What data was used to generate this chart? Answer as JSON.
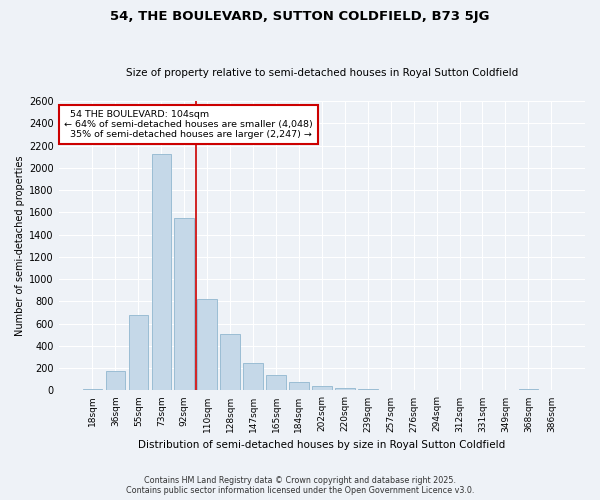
{
  "title": "54, THE BOULEVARD, SUTTON COLDFIELD, B73 5JG",
  "subtitle": "Size of property relative to semi-detached houses in Royal Sutton Coldfield",
  "xlabel": "Distribution of semi-detached houses by size in Royal Sutton Coldfield",
  "ylabel": "Number of semi-detached properties",
  "bar_labels": [
    "18sqm",
    "36sqm",
    "55sqm",
    "73sqm",
    "92sqm",
    "110sqm",
    "128sqm",
    "147sqm",
    "165sqm",
    "184sqm",
    "202sqm",
    "220sqm",
    "239sqm",
    "257sqm",
    "276sqm",
    "294sqm",
    "312sqm",
    "331sqm",
    "349sqm",
    "368sqm",
    "386sqm"
  ],
  "bar_values": [
    15,
    175,
    680,
    2120,
    1550,
    820,
    510,
    250,
    140,
    80,
    40,
    20,
    10,
    5,
    5,
    2,
    2,
    1,
    1,
    15,
    1
  ],
  "bar_color": "#c5d8e8",
  "bar_edge_color": "#9bbdd4",
  "property_line_x": 4.5,
  "property_sqm": 104,
  "property_label": "54 THE BOULEVARD: 104sqm",
  "pct_smaller": 64,
  "count_smaller": 4048,
  "pct_larger": 35,
  "count_larger": 2247,
  "vline_color": "#cc0000",
  "annotation_box_color": "#cc0000",
  "background_color": "#eef2f7",
  "grid_color": "#ffffff",
  "ylim": [
    0,
    2600
  ],
  "yticks": [
    0,
    200,
    400,
    600,
    800,
    1000,
    1200,
    1400,
    1600,
    1800,
    2000,
    2200,
    2400,
    2600
  ],
  "footer_line1": "Contains HM Land Registry data © Crown copyright and database right 2025.",
  "footer_line2": "Contains public sector information licensed under the Open Government Licence v3.0."
}
